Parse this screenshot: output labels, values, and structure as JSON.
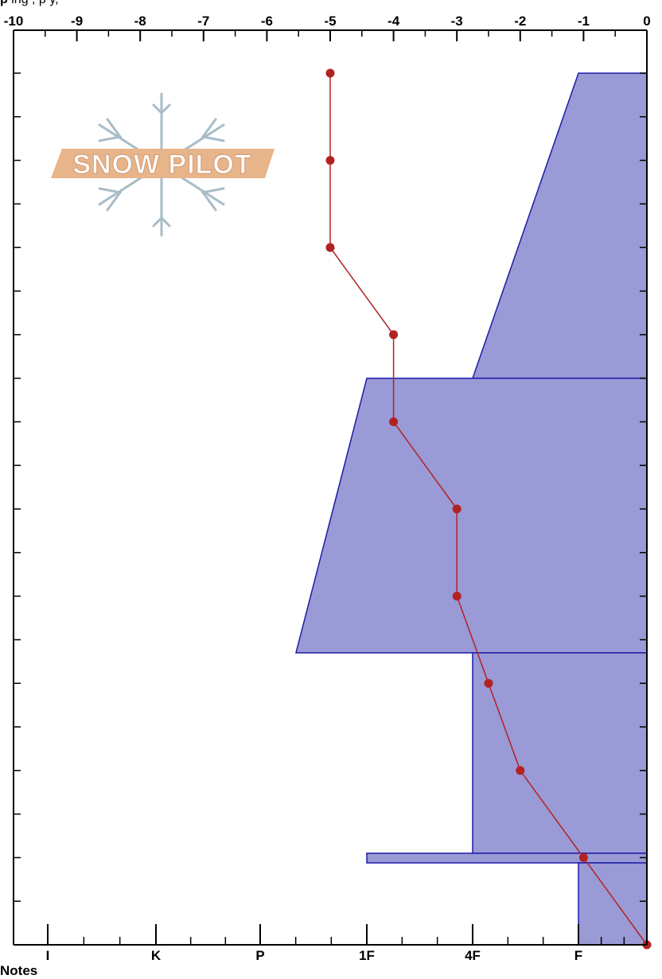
{
  "header": {
    "label": "p",
    "text": "ing         ,        p                      y,"
  },
  "notes_label": "Notes",
  "logo": {
    "text": "SNOW PILOT"
  },
  "colors": {
    "hardness_fill": "#9a9ad6",
    "hardness_stroke": "#1c1ca8",
    "temp_line": "#b22222",
    "logo_text_bg": "#e8b48a",
    "logo_flake": "#a8bcc8"
  },
  "chart_data": {
    "type": "line",
    "top_axis": {
      "label": "",
      "range": [
        -10,
        0
      ],
      "ticks": [
        "-10",
        "-9",
        "-8",
        "-7",
        "-6",
        "-5",
        "-4",
        "-3",
        "-2",
        "-1",
        "0"
      ]
    },
    "bottom_axis": {
      "label": "",
      "ticks": [
        "I",
        "K",
        "P",
        "1F",
        "4F",
        "F"
      ]
    },
    "y_range": [
      0,
      100
    ],
    "series": [
      {
        "kind": "temperature_profile",
        "points": [
          {
            "x": -5,
            "y": 100
          },
          {
            "x": -5,
            "y": 90
          },
          {
            "x": -5,
            "y": 80
          },
          {
            "x": -4,
            "y": 70
          },
          {
            "x": -4,
            "y": 60
          },
          {
            "x": -3,
            "y": 50
          },
          {
            "x": -3,
            "y": 40
          },
          {
            "x": -2.5,
            "y": 30
          },
          {
            "x": -2,
            "y": 20
          },
          {
            "x": -1,
            "y": 10
          },
          {
            "x": 0,
            "y": 0
          }
        ]
      },
      {
        "kind": "hardness_profile",
        "layers": [
          {
            "y_top": 100,
            "y_bottom": 65,
            "hardness_top": "F",
            "hardness_bottom": "4F-"
          },
          {
            "y_top": 65,
            "y_bottom": 33.5,
            "hardness_top": "1F",
            "hardness_bottom": "P-"
          },
          {
            "y_top": 33.5,
            "y_bottom": 10.5,
            "hardness_top": "4F-",
            "hardness_bottom": "4F-"
          },
          {
            "y_top": 10.5,
            "y_bottom": 9.4,
            "hardness_top": "1F",
            "hardness_bottom": "1F"
          },
          {
            "y_top": 9.4,
            "y_bottom": 0,
            "hardness_top": "F",
            "hardness_bottom": "F"
          }
        ]
      }
    ],
    "grid": false
  }
}
